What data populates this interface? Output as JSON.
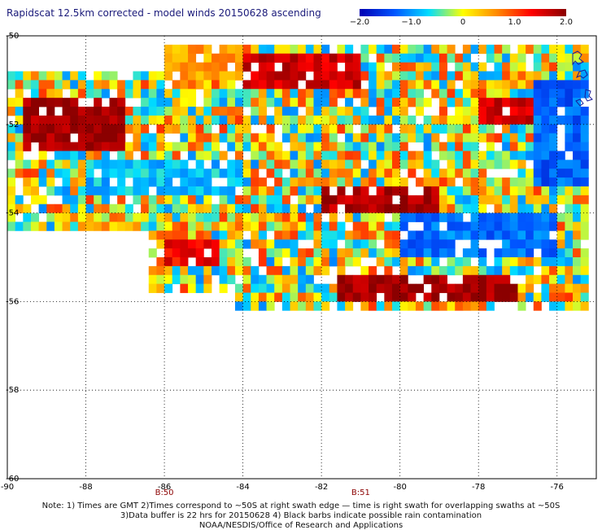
{
  "title": "Rapidscat 12.5km corrected - model winds 20150628 ascending",
  "colorbar": {
    "min": -2.0,
    "max": 2.0,
    "ticks": [
      -2.0,
      -1.0,
      0,
      1.0,
      2.0
    ],
    "tick_labels": [
      "−2.0",
      "−1.0",
      "0",
      "1.0",
      "2.0"
    ],
    "colors": [
      "#0000b4",
      "#0055ff",
      "#00ddff",
      "#ffff00",
      "#ff8800",
      "#ff0000",
      "#8b0000"
    ]
  },
  "chart_data": {
    "type": "heatmap",
    "title": "Rapidscat 12.5km corrected - model winds 20150628 ascending",
    "xlabel": "",
    "ylabel": "",
    "xlim": [
      -90,
      -75
    ],
    "ylim": [
      -60,
      -50
    ],
    "x_ticks": [
      -90,
      -88,
      -86,
      -84,
      -82,
      -80,
      -78,
      -76
    ],
    "x_tick_labels": [
      "-90",
      "-88",
      "-86",
      "-84",
      "-82",
      "-80",
      "-78",
      "-76"
    ],
    "y_ticks": [
      -50,
      -52,
      -54,
      -56,
      -58,
      -60
    ],
    "y_tick_labels": [
      "-50",
      "-52",
      "-54",
      "-56",
      "-58",
      "-60"
    ],
    "grid": true,
    "value_range": [
      -2.0,
      2.0
    ],
    "time_labels": [
      {
        "lon": -86,
        "label": "B:50"
      },
      {
        "lon": -81,
        "label": "B:51"
      }
    ],
    "regions": [
      {
        "lon": [
          -89.5,
          -87
        ],
        "lat": [
          -52.7,
          -51.5
        ],
        "mean": 1.9
      },
      {
        "lon": [
          -84,
          -81
        ],
        "lat": [
          -51.3,
          -50.5
        ],
        "mean": 1.6
      },
      {
        "lon": [
          -78,
          -76.5
        ],
        "lat": [
          -52,
          -51.5
        ],
        "mean": 1.6
      },
      {
        "lon": [
          -82,
          -79
        ],
        "lat": [
          -54,
          -53.5
        ],
        "mean": 1.8
      },
      {
        "lon": [
          -81.5,
          -77
        ],
        "lat": [
          -56,
          -55.4
        ],
        "mean": 1.9
      },
      {
        "lon": [
          -86,
          -84.5
        ],
        "lat": [
          -55.2,
          -54.6
        ],
        "mean": 1.4
      },
      {
        "lon": [
          -88,
          -84
        ],
        "lat": [
          -53.6,
          -52.8
        ],
        "mean": -0.8
      },
      {
        "lon": [
          -80,
          -76
        ],
        "lat": [
          -55,
          -54
        ],
        "mean": -1.2
      },
      {
        "lon": [
          -76.5,
          -75
        ],
        "lat": [
          -53.5,
          -51
        ],
        "mean": -1.3
      },
      {
        "lon": [
          -86,
          -84
        ],
        "lat": [
          -51,
          -50
        ],
        "mean": 0.5
      }
    ]
  },
  "notes": {
    "line1": "Note: 1) Times are GMT 2)Times correspond to ~50S at right swath edge — time is right swath for overlapping swaths at ~50S",
    "line2": "3)Data buffer is 22 hrs for 20150628 4) Black barbs indicate possible rain contamination",
    "line3": "NOAA/NESDIS/Office of Research and Applications"
  }
}
